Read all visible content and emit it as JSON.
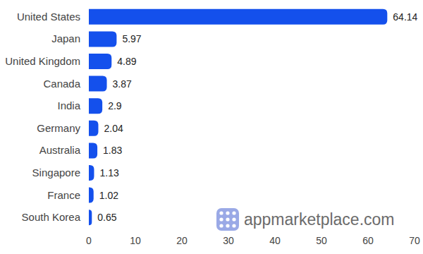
{
  "chart_data": {
    "type": "bar",
    "orientation": "horizontal",
    "categories": [
      "United States",
      "Japan",
      "United Kingdom",
      "Canada",
      "India",
      "Germany",
      "Australia",
      "Singapore",
      "France",
      "South Korea"
    ],
    "values": [
      64.14,
      5.97,
      4.89,
      3.87,
      2.9,
      2.04,
      1.83,
      1.13,
      1.02,
      0.65
    ],
    "color": "#1450ec",
    "xlim": [
      0,
      70
    ],
    "xticks": [
      0,
      10,
      20,
      30,
      40,
      50,
      60,
      70
    ],
    "grid": false,
    "data_labels": true,
    "annotations": [
      "appmarketplace.com"
    ]
  }
}
